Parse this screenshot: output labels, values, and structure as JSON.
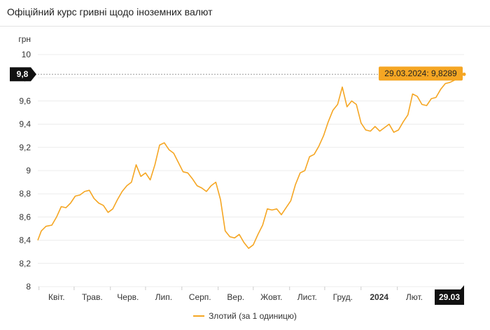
{
  "header": {
    "title": "Офіційний курс гривні щодо іноземних валют"
  },
  "colors": {
    "series": "#f5a623",
    "marker_bg": "#111111",
    "tooltip_bg": "#f5a623",
    "grid": "#ececec"
  },
  "chart_data": {
    "type": "line",
    "ylabel": "грн",
    "ylim": [
      8,
      10
    ],
    "yticks": [
      "8",
      "8,2",
      "8,4",
      "8,6",
      "8,8",
      "9",
      "9,2",
      "9,4",
      "9,6",
      "9,8",
      "10"
    ],
    "xticks": [
      "Квіт.",
      "Трав.",
      "Черв.",
      "Лип.",
      "Серп.",
      "Вер.",
      "Жовт.",
      "Лист.",
      "Груд.",
      "2024",
      "Лют."
    ],
    "current_y_marker": "9,8",
    "current_x_marker": "29.03",
    "tooltip": "29.03.2024: 9,8289",
    "grid": "horizontal",
    "series": [
      {
        "name": "Злотий (за 1 одиницю)",
        "color": "#f5a623",
        "x": [
          "2023-03-31",
          "2023-04-03",
          "2023-04-07",
          "2023-04-12",
          "2023-04-16",
          "2023-04-20",
          "2023-04-24",
          "2023-04-28",
          "2023-05-02",
          "2023-05-06",
          "2023-05-10",
          "2023-05-14",
          "2023-05-18",
          "2023-05-22",
          "2023-05-26",
          "2023-05-30",
          "2023-06-03",
          "2023-06-07",
          "2023-06-11",
          "2023-06-15",
          "2023-06-19",
          "2023-06-23",
          "2023-06-27",
          "2023-07-01",
          "2023-07-05",
          "2023-07-09",
          "2023-07-13",
          "2023-07-17",
          "2023-07-21",
          "2023-07-25",
          "2023-07-29",
          "2023-08-02",
          "2023-08-06",
          "2023-08-10",
          "2023-08-14",
          "2023-08-18",
          "2023-08-22",
          "2023-08-26",
          "2023-08-30",
          "2023-09-03",
          "2023-09-07",
          "2023-09-11",
          "2023-09-15",
          "2023-09-19",
          "2023-09-23",
          "2023-09-27",
          "2023-10-01",
          "2023-10-05",
          "2023-10-09",
          "2023-10-13",
          "2023-10-17",
          "2023-10-21",
          "2023-10-25",
          "2023-10-29",
          "2023-11-02",
          "2023-11-06",
          "2023-11-10",
          "2023-11-14",
          "2023-11-18",
          "2023-11-22",
          "2023-11-26",
          "2023-11-30",
          "2023-12-04",
          "2023-12-08",
          "2023-12-12",
          "2023-12-16",
          "2023-12-20",
          "2023-12-24",
          "2023-12-28",
          "2024-01-01",
          "2024-01-05",
          "2024-01-09",
          "2024-01-13",
          "2024-01-17",
          "2024-01-21",
          "2024-01-25",
          "2024-01-29",
          "2024-02-02",
          "2024-02-06",
          "2024-02-10",
          "2024-02-14",
          "2024-02-18",
          "2024-02-22",
          "2024-02-26",
          "2024-03-01",
          "2024-03-05",
          "2024-03-09",
          "2024-03-13",
          "2024-03-17",
          "2024-03-21",
          "2024-03-25",
          "2024-03-29"
        ],
        "y": [
          8.4,
          8.48,
          8.52,
          8.53,
          8.6,
          8.69,
          8.68,
          8.72,
          8.78,
          8.79,
          8.82,
          8.83,
          8.76,
          8.72,
          8.7,
          8.64,
          8.67,
          8.75,
          8.82,
          8.87,
          8.9,
          9.05,
          8.95,
          8.98,
          8.92,
          9.05,
          9.22,
          9.24,
          9.18,
          9.15,
          9.07,
          8.99,
          8.98,
          8.93,
          8.87,
          8.85,
          8.82,
          8.87,
          8.9,
          8.75,
          8.48,
          8.43,
          8.42,
          8.45,
          8.38,
          8.33,
          8.36,
          8.45,
          8.53,
          8.67,
          8.66,
          8.67,
          8.62,
          8.68,
          8.74,
          8.88,
          8.98,
          9.0,
          9.12,
          9.14,
          9.21,
          9.3,
          9.42,
          9.52,
          9.57,
          9.72,
          9.55,
          9.6,
          9.57,
          9.41,
          9.35,
          9.34,
          9.38,
          9.34,
          9.37,
          9.4,
          9.33,
          9.35,
          9.42,
          9.48,
          9.66,
          9.64,
          9.57,
          9.56,
          9.62,
          9.63,
          9.7,
          9.75,
          9.76,
          9.78,
          9.81,
          9.83
        ]
      }
    ]
  }
}
